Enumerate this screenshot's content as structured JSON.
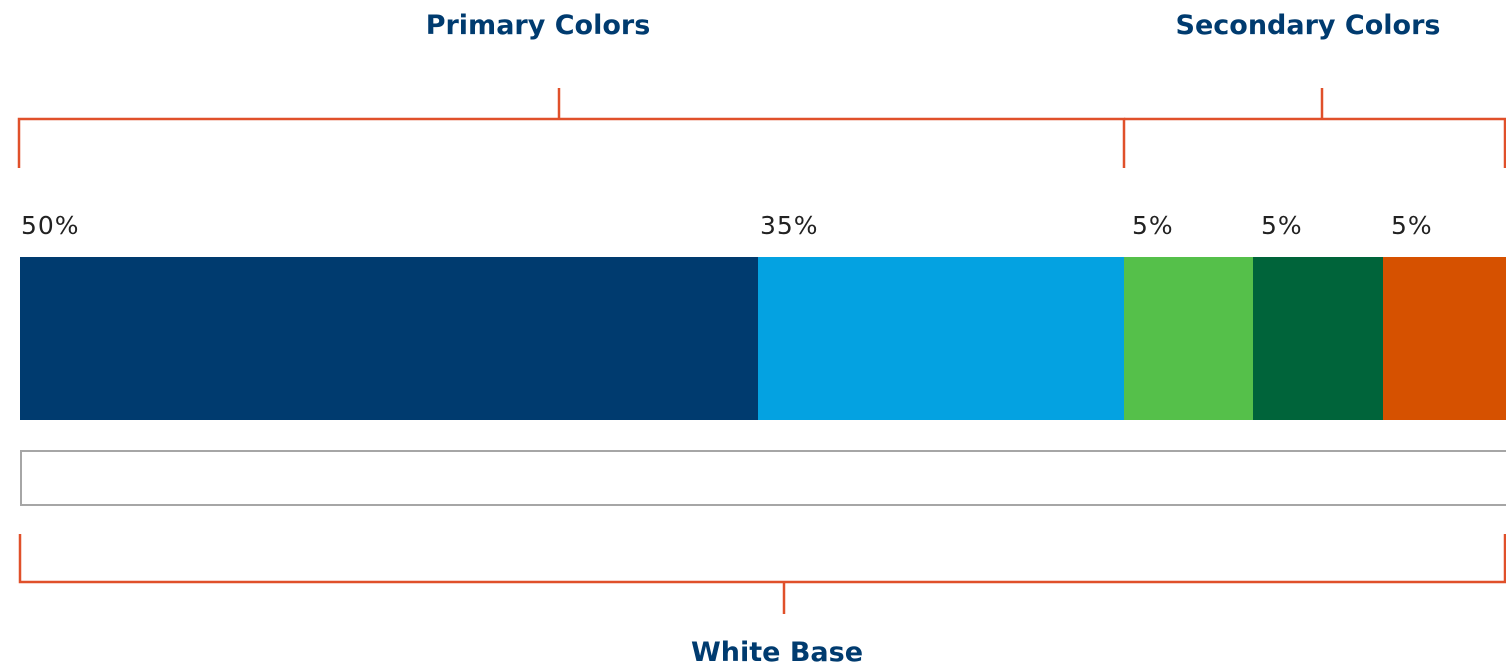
{
  "groups": {
    "primary_label": "Primary Colors",
    "secondary_label": "Secondary Colors",
    "base_label": "White Base"
  },
  "segments": [
    {
      "percent_label": "50%",
      "share": 50,
      "color": "#003b6f"
    },
    {
      "percent_label": "35%",
      "share": 35,
      "color": "#04a2e1"
    },
    {
      "percent_label": "5%",
      "share": 5,
      "color": "#55c04a"
    },
    {
      "percent_label": "5%",
      "share": 5,
      "color": "#00643a"
    },
    {
      "percent_label": "5%",
      "share": 5,
      "color": "#d65100"
    }
  ],
  "colors": {
    "bracket": "#e0502a",
    "title": "#003b6f",
    "base_border": "#a6a6a6",
    "base_fill": "#ffffff"
  }
}
